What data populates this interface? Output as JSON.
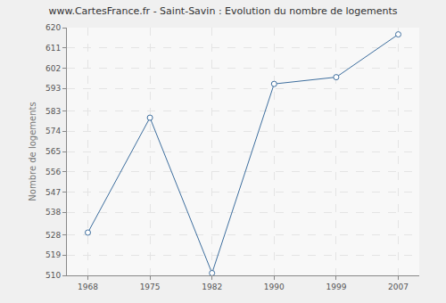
{
  "chart_data": {
    "type": "line",
    "title": "www.CartesFrance.fr - Saint-Savin : Evolution du nombre de logements",
    "y_label": "Nombre de logements",
    "categories": [
      "1968",
      "1975",
      "1982",
      "1990",
      "1999",
      "2007"
    ],
    "values": [
      529,
      580,
      511,
      595,
      598,
      617
    ],
    "color": "#3d6e9e",
    "marker": "circle",
    "line_style": "solid",
    "ylim": [
      510,
      620
    ],
    "yticks": [
      510,
      519,
      528,
      538,
      547,
      556,
      565,
      574,
      583,
      593,
      602,
      611,
      620
    ],
    "grid": true
  }
}
